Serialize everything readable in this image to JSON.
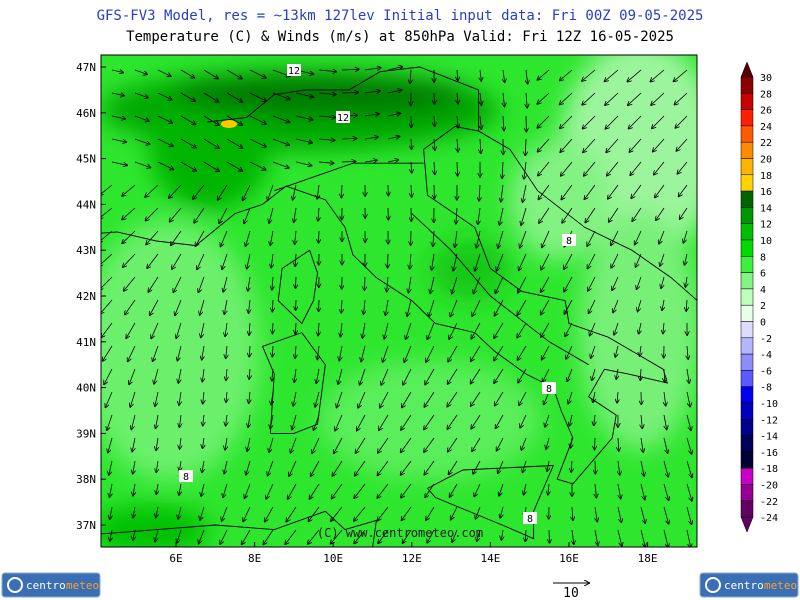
{
  "header": {
    "line1": "GFS-FV3 Model, res = ~13km 127lev   Initial input data: Fri 00Z 09-05-2025",
    "line2": "Temperature (C) & Winds (m/s) at 850hPa  Valid: Fri 12Z 16-05-2025"
  },
  "map": {
    "latitude_labels": [
      "47N",
      "46N",
      "45N",
      "44N",
      "43N",
      "42N",
      "41N",
      "40N",
      "39N",
      "38N",
      "37N"
    ],
    "longitude_labels": [
      "6E",
      "8E",
      "10E",
      "12E",
      "14E",
      "16E",
      "18E"
    ],
    "contour_labels": [
      "12",
      "12",
      "8",
      "8",
      "8",
      "8"
    ],
    "watermark": "(C) www.centrometeo.com"
  },
  "colorbar": {
    "labels": [
      30,
      28,
      26,
      24,
      22,
      20,
      18,
      16,
      14,
      12,
      10,
      8,
      6,
      4,
      2,
      0,
      -2,
      -4,
      -6,
      -8,
      -10,
      -12,
      -14,
      -16,
      -18,
      -20,
      -22,
      -24
    ],
    "colors": [
      "#5a0000",
      "#8b0000",
      "#c80000",
      "#ff1e00",
      "#ff5a00",
      "#ff8c00",
      "#ffb400",
      "#ffd200",
      "#006400",
      "#009600",
      "#00be00",
      "#00dc00",
      "#3cf03c",
      "#82f582",
      "#beffbe",
      "#e6ffe6",
      "#dcdcff",
      "#b4b4ff",
      "#8c8cff",
      "#5a5aff",
      "#0000f0",
      "#0000be",
      "#00008c",
      "#00005a",
      "#000032",
      "#c800c8",
      "#960096",
      "#640064"
    ]
  },
  "reference_vector": {
    "label": "10"
  },
  "logos": [
    {
      "part1": "centro",
      "part2": "meteo"
    },
    {
      "part1": "centro",
      "part2": "meteo"
    }
  ]
}
